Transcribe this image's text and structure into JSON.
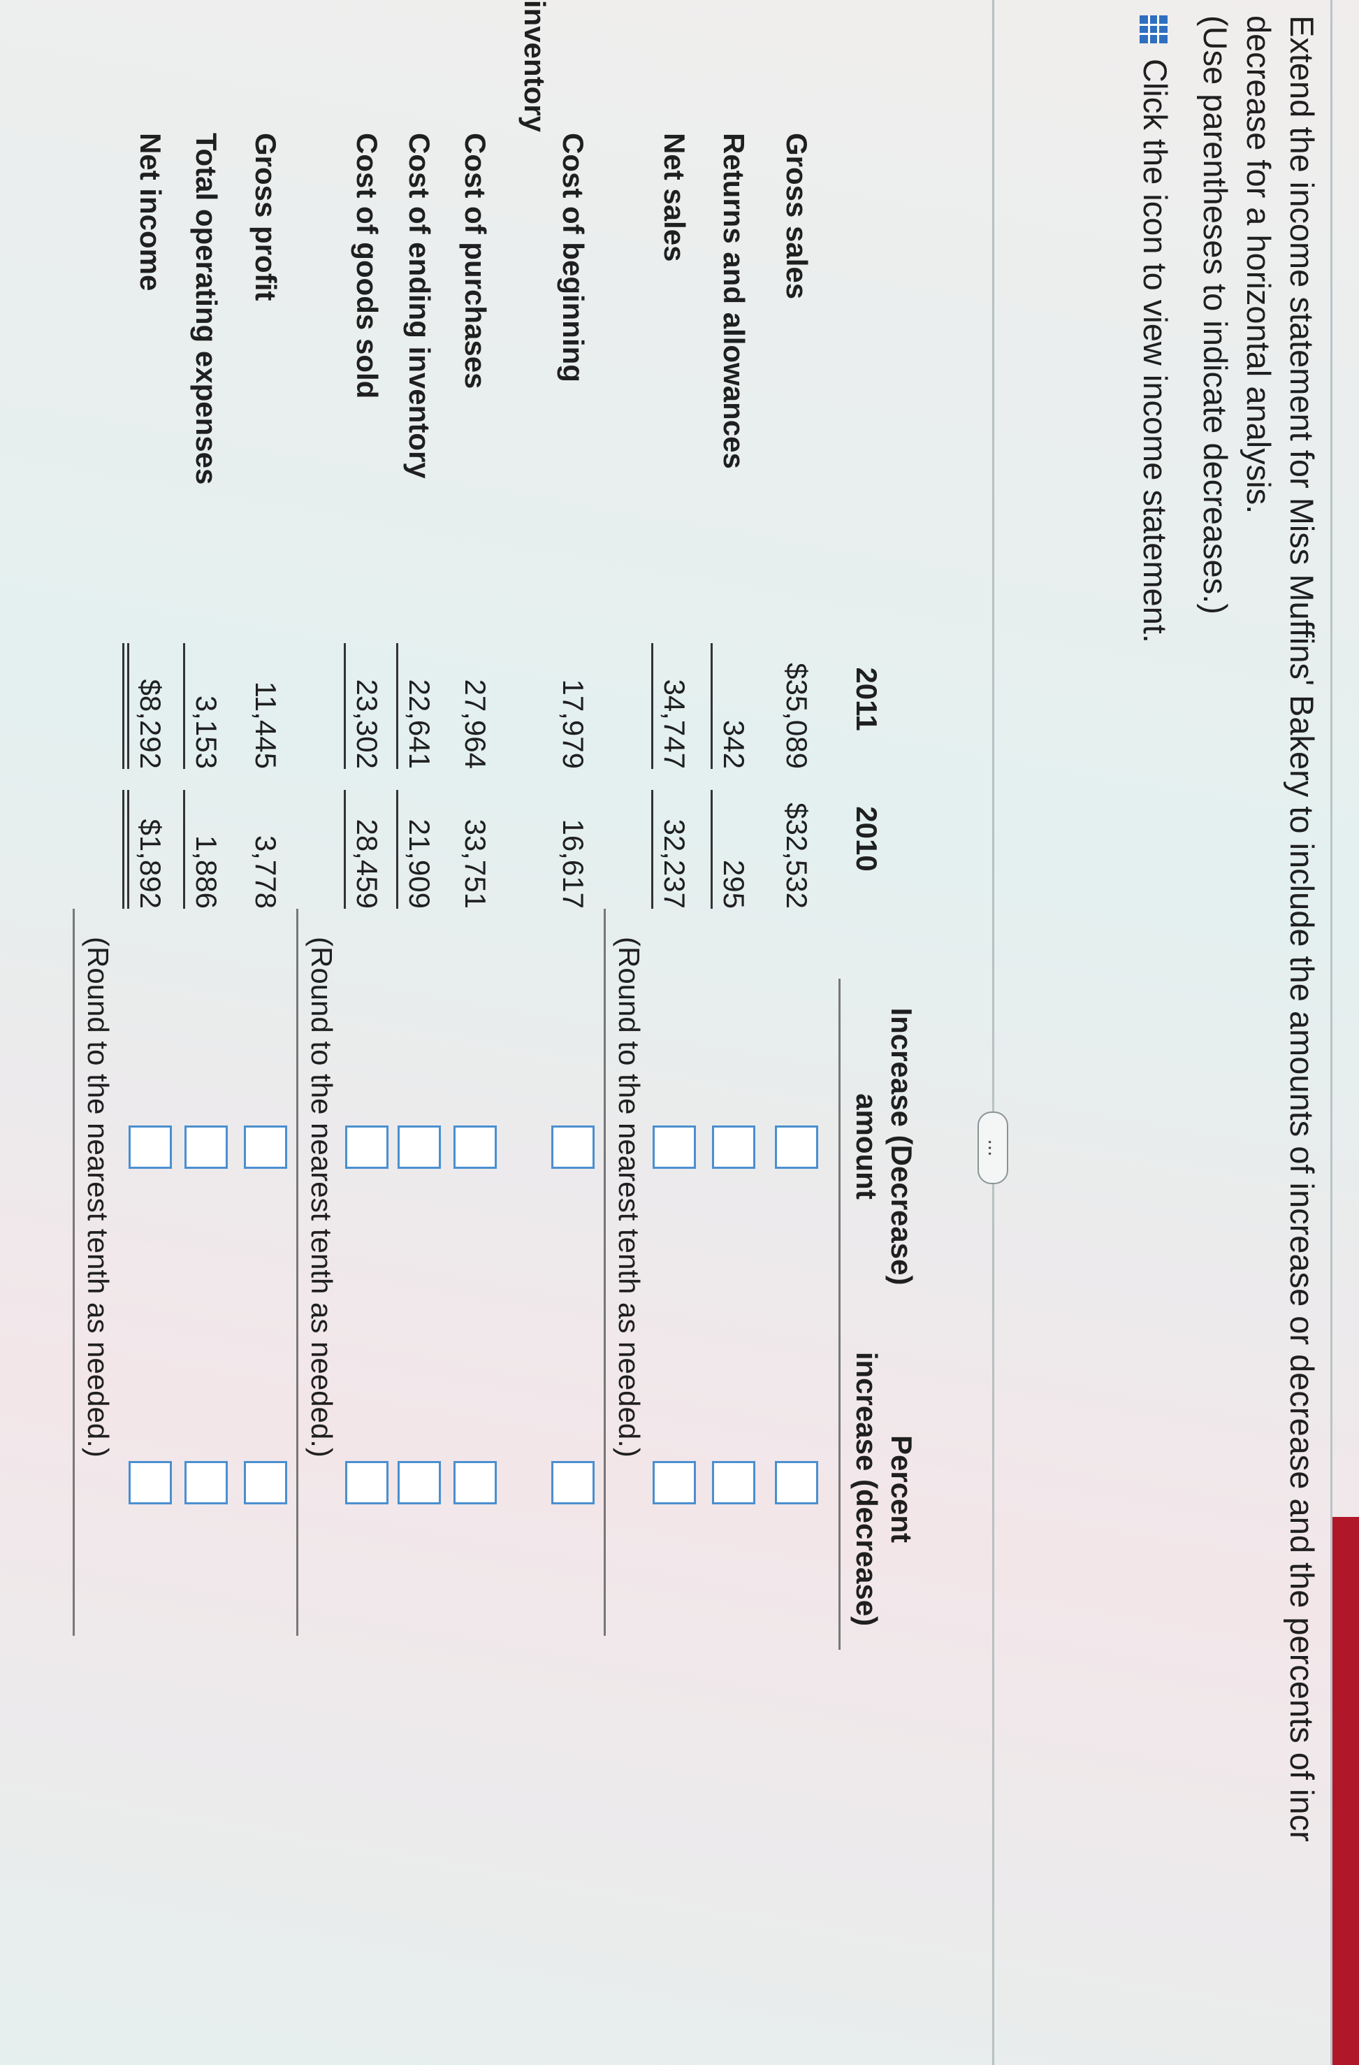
{
  "instructions": {
    "line1": "Extend the income statement for Miss Muffins' Bakery to include the amounts of increase or decrease and the percents of incr",
    "line2": "decrease for a horizontal analysis.",
    "line3": "(Use parentheses to indicate decreases.)",
    "icon_link": "Click the icon to view income statement.",
    "icon": "grid-table-icon"
  },
  "more_button": "...",
  "headers": {
    "y2011": "2011",
    "y2010": "2010",
    "amount_l1": "Increase (Decrease)",
    "amount_l2": "amount",
    "percent_l1": "Percent",
    "percent_l2": "increase (decrease)"
  },
  "section1": [
    {
      "label": "Gross sales",
      "v2011": "$35,089",
      "v2010": "$32,532"
    },
    {
      "label": "Returns and allowances",
      "v2011": "342",
      "v2010": "295"
    },
    {
      "label": "Net sales",
      "v2011": "34,747",
      "v2010": "32,237"
    }
  ],
  "section2": [
    {
      "label": "Cost of beginning",
      "label2": "inventory",
      "v2011": "17,979",
      "v2010": "16,617"
    },
    {
      "label": "Cost of purchases",
      "v2011": "27,964",
      "v2010": "33,751"
    },
    {
      "label": "Cost of ending inventory",
      "v2011": "22,641",
      "v2010": "21,909"
    },
    {
      "label": "Cost of goods sold",
      "v2011": "23,302",
      "v2010": "28,459"
    },
    {
      "label": "Gross profit",
      "v2011": "11,445",
      "v2010": "3,778"
    },
    {
      "label": "Total operating expenses",
      "v2011": "3,153",
      "v2010": "1,886"
    },
    {
      "label": "Net income",
      "v2011": "$8,292",
      "v2010": "$1,892"
    }
  ],
  "round_note": "(Round to the nearest tenth as needed.)"
}
